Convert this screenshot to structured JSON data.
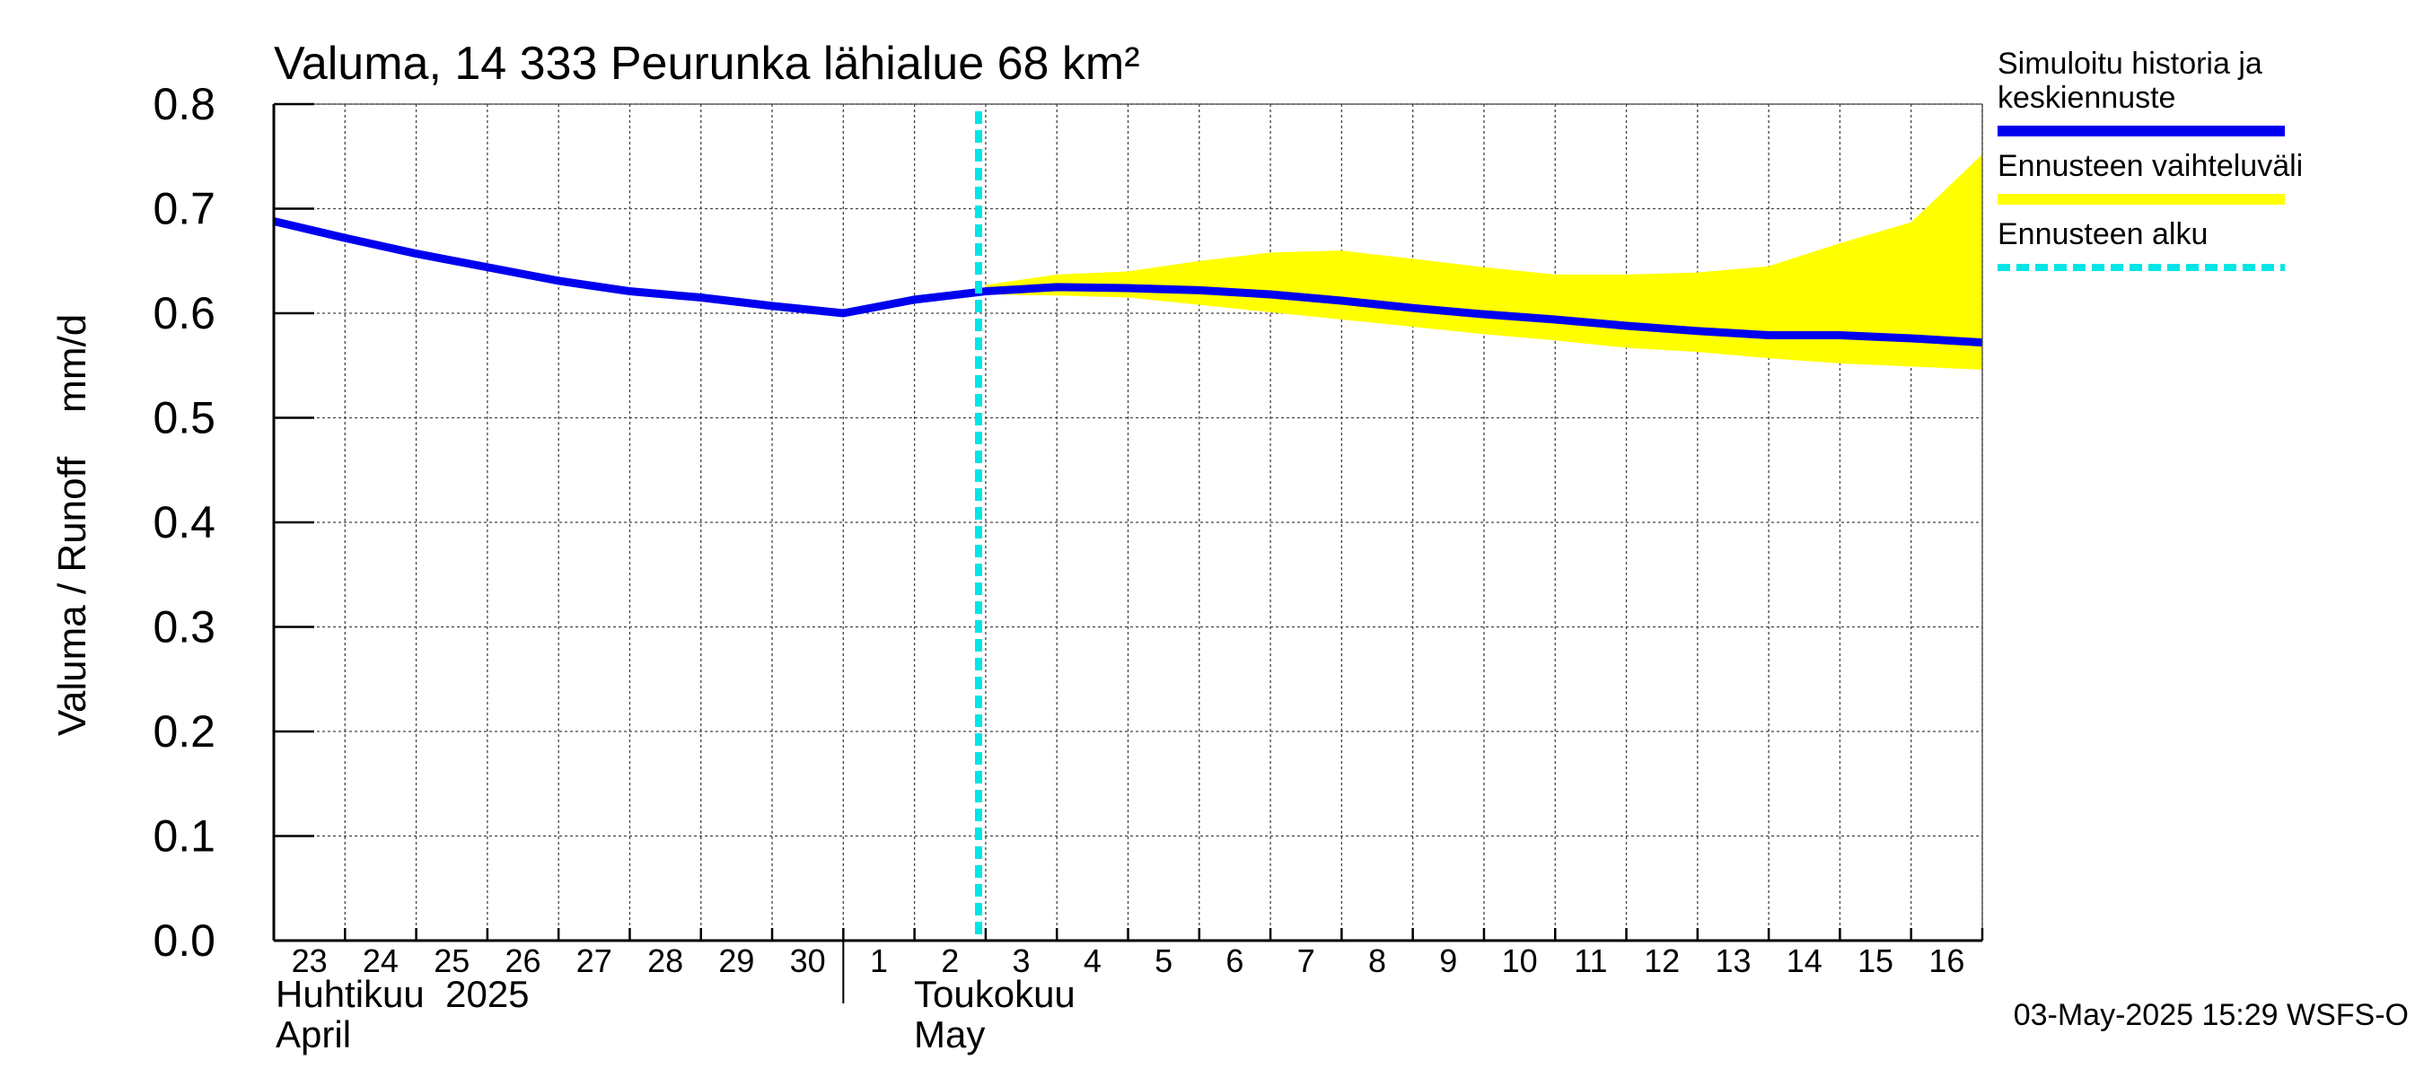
{
  "chart_data": {
    "type": "line",
    "title": "Valuma, 14 333 Peurunka lähialue 68 km²",
    "ylabel": "Valuma / Runoff    mm/d",
    "ylim": [
      0,
      0.8
    ],
    "y_ticks": [
      "0.0",
      "0.1",
      "0.2",
      "0.3",
      "0.4",
      "0.5",
      "0.6",
      "0.7",
      "0.8"
    ],
    "x_day_labels": [
      "23",
      "24",
      "25",
      "26",
      "27",
      "28",
      "29",
      "30",
      "1",
      "2",
      "3",
      "4",
      "5",
      "6",
      "7",
      "8",
      "9",
      "10",
      "11",
      "12",
      "13",
      "14",
      "15",
      "16"
    ],
    "x_dates": [
      "2025-04-23",
      "2025-04-24",
      "2025-04-25",
      "2025-04-26",
      "2025-04-27",
      "2025-04-28",
      "2025-04-29",
      "2025-04-30",
      "2025-05-01",
      "2025-05-02",
      "2025-05-03",
      "2025-05-04",
      "2025-05-05",
      "2025-05-06",
      "2025-05-07",
      "2025-05-08",
      "2025-05-09",
      "2025-05-10",
      "2025-05-11",
      "2025-05-12",
      "2025-05-13",
      "2025-05-14",
      "2025-05-15",
      "2025-05-16",
      "2025-05-17"
    ],
    "month_labels": {
      "april_fi": "Huhtikuu  2025",
      "april_en": "April",
      "may_fi": "Toukokuu",
      "may_en": "May"
    },
    "series": [
      {
        "name": "Simuloitu historia ja keskiennuste",
        "color": "#0000ee",
        "values": [
          0.688,
          0.672,
          0.657,
          0.644,
          0.631,
          0.621,
          0.615,
          0.607,
          0.6,
          0.613,
          0.621,
          0.625,
          0.624,
          0.622,
          0.618,
          0.612,
          0.605,
          0.599,
          0.594,
          0.588,
          0.583,
          0.579,
          0.579,
          0.576,
          0.572
        ]
      }
    ],
    "forecast_band": {
      "name": "Ennusteen vaihteluväli",
      "color": "#ffff00",
      "start_index": 10,
      "upper": [
        0.627,
        0.637,
        0.64,
        0.65,
        0.658,
        0.66,
        0.652,
        0.644,
        0.637,
        0.637,
        0.639,
        0.645,
        0.667,
        0.687,
        0.752
      ],
      "lower": [
        0.618,
        0.617,
        0.615,
        0.608,
        0.601,
        0.594,
        0.587,
        0.58,
        0.574,
        0.567,
        0.563,
        0.557,
        0.552,
        0.549,
        0.546
      ]
    },
    "forecast_start": {
      "name": "Ennusteen alku",
      "color": "#00e5e5",
      "x_index": 9.9
    },
    "legend": [
      {
        "label_lines": [
          "Simuloitu historia ja",
          "keskiennuste"
        ],
        "color": "#0000ee",
        "style": "solid"
      },
      {
        "label_lines": [
          "Ennusteen vaihteluväli"
        ],
        "color": "#ffff00",
        "style": "solid"
      },
      {
        "label_lines": [
          "Ennusteen alku"
        ],
        "color": "#00e5e5",
        "style": "dashed"
      }
    ],
    "legend_position": "right",
    "grid": true,
    "footer": "03-May-2025 15:29 WSFS-O"
  }
}
